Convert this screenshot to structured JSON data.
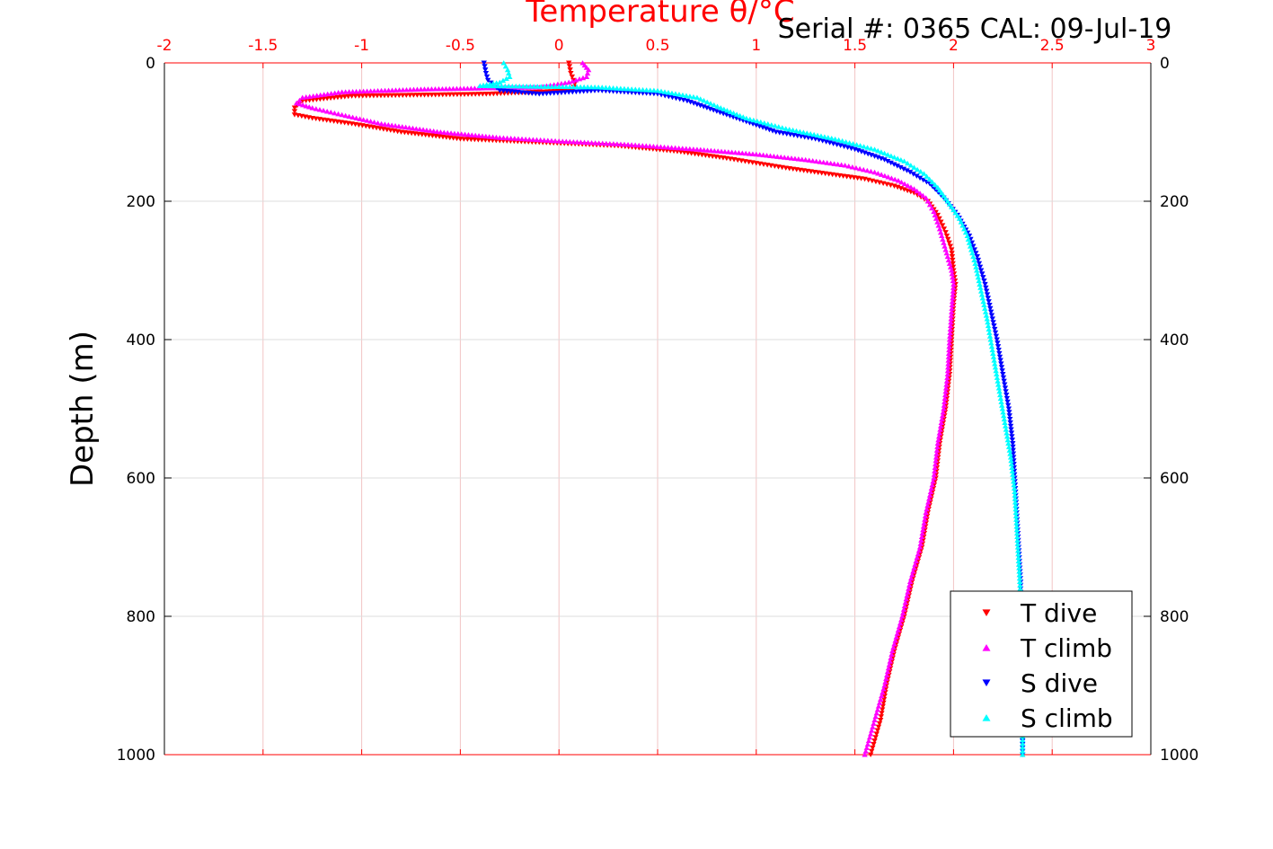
{
  "chart_data": {
    "type": "scatter",
    "title": "Temperature θ/°C",
    "subtitle": "Serial #: 0365  CAL: 09-Jul-19",
    "xlabel": "Temperature θ/°C",
    "ylabel": "Depth (m)",
    "xlim": [
      -2,
      3
    ],
    "ylim": [
      0,
      1000
    ],
    "y_reversed": true,
    "x_ticks": [
      "-2",
      "-1.5",
      "-1",
      "-0.5",
      "0",
      "0.5",
      "1",
      "1.5",
      "2",
      "2.5",
      "3"
    ],
    "y_ticks": [
      "0",
      "200",
      "400",
      "600",
      "800",
      "1000"
    ],
    "grid": true,
    "legend_position": "bottom-right",
    "series": [
      {
        "name": "T dive",
        "color": "#ff0000",
        "marker": "triangle-down",
        "points": [
          [
            0.05,
            0
          ],
          [
            0.06,
            15
          ],
          [
            0.08,
            30
          ],
          [
            0.07,
            40
          ],
          [
            -0.35,
            45
          ],
          [
            -1.05,
            48
          ],
          [
            -1.3,
            55
          ],
          [
            -1.34,
            65
          ],
          [
            -1.34,
            75
          ],
          [
            -1.25,
            80
          ],
          [
            -1.05,
            88
          ],
          [
            -0.8,
            100
          ],
          [
            -0.5,
            110
          ],
          [
            -0.1,
            115
          ],
          [
            0.3,
            120
          ],
          [
            0.6,
            128
          ],
          [
            0.85,
            138
          ],
          [
            1.0,
            145
          ],
          [
            1.15,
            152
          ],
          [
            1.35,
            160
          ],
          [
            1.55,
            168
          ],
          [
            1.7,
            178
          ],
          [
            1.8,
            188
          ],
          [
            1.87,
            200
          ],
          [
            1.92,
            220
          ],
          [
            1.96,
            245
          ],
          [
            1.99,
            270
          ],
          [
            2.0,
            300
          ],
          [
            2.01,
            320
          ],
          [
            2.0,
            350
          ],
          [
            1.99,
            400
          ],
          [
            1.98,
            450
          ],
          [
            1.96,
            500
          ],
          [
            1.93,
            550
          ],
          [
            1.91,
            600
          ],
          [
            1.87,
            650
          ],
          [
            1.84,
            700
          ],
          [
            1.79,
            750
          ],
          [
            1.75,
            800
          ],
          [
            1.7,
            850
          ],
          [
            1.66,
            900
          ],
          [
            1.63,
            950
          ],
          [
            1.58,
            1000
          ]
        ]
      },
      {
        "name": "T climb",
        "color": "#ff00ff",
        "marker": "triangle-up",
        "points": [
          [
            0.12,
            0
          ],
          [
            0.15,
            10
          ],
          [
            0.14,
            20
          ],
          [
            0.05,
            28
          ],
          [
            -0.1,
            35
          ],
          [
            -0.7,
            38
          ],
          [
            -1.1,
            42
          ],
          [
            -1.3,
            50
          ],
          [
            -1.33,
            58
          ],
          [
            -1.25,
            65
          ],
          [
            -1.1,
            75
          ],
          [
            -0.9,
            88
          ],
          [
            -0.6,
            100
          ],
          [
            -0.3,
            108
          ],
          [
            0.0,
            113
          ],
          [
            0.35,
            118
          ],
          [
            0.7,
            125
          ],
          [
            1.0,
            132
          ],
          [
            1.25,
            140
          ],
          [
            1.45,
            148
          ],
          [
            1.6,
            158
          ],
          [
            1.72,
            170
          ],
          [
            1.8,
            182
          ],
          [
            1.86,
            195
          ],
          [
            1.9,
            215
          ],
          [
            1.93,
            240
          ],
          [
            1.96,
            270
          ],
          [
            1.99,
            300
          ],
          [
            2.0,
            320
          ],
          [
            1.99,
            360
          ],
          [
            1.98,
            400
          ],
          [
            1.97,
            450
          ],
          [
            1.95,
            500
          ],
          [
            1.92,
            550
          ],
          [
            1.9,
            600
          ],
          [
            1.86,
            650
          ],
          [
            1.83,
            700
          ],
          [
            1.78,
            750
          ],
          [
            1.74,
            800
          ],
          [
            1.69,
            850
          ],
          [
            1.65,
            900
          ],
          [
            1.6,
            950
          ],
          [
            1.55,
            1000
          ]
        ]
      },
      {
        "name": "S dive",
        "color": "#0000ff",
        "marker": "triangle-down",
        "points": [
          [
            -0.38,
            0
          ],
          [
            -0.37,
            15
          ],
          [
            -0.36,
            25
          ],
          [
            -0.3,
            40
          ],
          [
            -0.1,
            45
          ],
          [
            0.2,
            40
          ],
          [
            0.5,
            45
          ],
          [
            0.65,
            55
          ],
          [
            0.8,
            70
          ],
          [
            0.95,
            85
          ],
          [
            1.1,
            100
          ],
          [
            1.3,
            110
          ],
          [
            1.5,
            125
          ],
          [
            1.65,
            140
          ],
          [
            1.78,
            158
          ],
          [
            1.88,
            175
          ],
          [
            1.95,
            195
          ],
          [
            2.02,
            220
          ],
          [
            2.08,
            250
          ],
          [
            2.12,
            280
          ],
          [
            2.16,
            320
          ],
          [
            2.19,
            360
          ],
          [
            2.22,
            400
          ],
          [
            2.25,
            450
          ],
          [
            2.28,
            500
          ],
          [
            2.3,
            550
          ],
          [
            2.31,
            600
          ],
          [
            2.32,
            650
          ],
          [
            2.33,
            700
          ],
          [
            2.34,
            750
          ],
          [
            2.34,
            800
          ],
          [
            2.35,
            850
          ],
          [
            2.35,
            900
          ],
          [
            2.35,
            950
          ],
          [
            2.35,
            1000
          ]
        ]
      },
      {
        "name": "S climb",
        "color": "#00ffff",
        "marker": "triangle-up",
        "points": [
          [
            -0.28,
            0
          ],
          [
            -0.26,
            10
          ],
          [
            -0.25,
            20
          ],
          [
            -0.3,
            28
          ],
          [
            -0.4,
            33
          ],
          [
            0.2,
            35
          ],
          [
            0.5,
            40
          ],
          [
            0.7,
            50
          ],
          [
            0.82,
            65
          ],
          [
            0.95,
            80
          ],
          [
            1.15,
            95
          ],
          [
            1.4,
            110
          ],
          [
            1.6,
            125
          ],
          [
            1.75,
            142
          ],
          [
            1.85,
            160
          ],
          [
            1.92,
            180
          ],
          [
            1.97,
            200
          ],
          [
            2.03,
            225
          ],
          [
            2.07,
            250
          ],
          [
            2.11,
            290
          ],
          [
            2.14,
            330
          ],
          [
            2.17,
            370
          ],
          [
            2.2,
            420
          ],
          [
            2.23,
            470
          ],
          [
            2.26,
            520
          ],
          [
            2.29,
            570
          ],
          [
            2.31,
            620
          ],
          [
            2.32,
            670
          ],
          [
            2.33,
            720
          ],
          [
            2.34,
            770
          ],
          [
            2.35,
            820
          ],
          [
            2.35,
            870
          ],
          [
            2.35,
            920
          ],
          [
            2.35,
            1000
          ]
        ]
      }
    ]
  }
}
